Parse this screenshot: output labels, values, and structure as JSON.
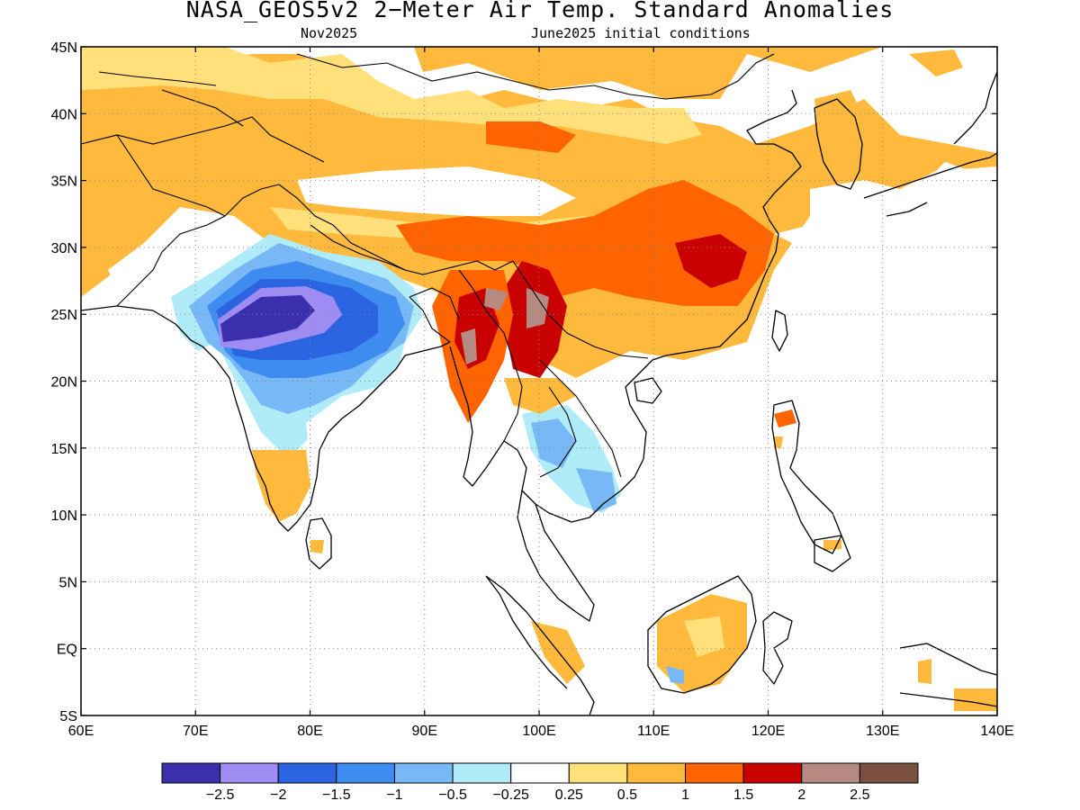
{
  "title": "NASA_GEOS5v2 2−Meter Air Temp. Standard Anomalies",
  "subtitle_left": "Nov2025",
  "subtitle_right": "June2025 initial conditions",
  "lat_labels": [
    "45N",
    "40N",
    "35N",
    "30N",
    "25N",
    "20N",
    "15N",
    "10N",
    "5N",
    "EQ",
    "5S"
  ],
  "lon_labels": [
    "60E",
    "70E",
    "80E",
    "90E",
    "100E",
    "110E",
    "120E",
    "130E",
    "140E"
  ],
  "colorbar": {
    "colors": [
      "#3b2fae",
      "#9f8cf2",
      "#2b64e0",
      "#3f8cf0",
      "#78b8f6",
      "#b0ecf8",
      "#ffffff",
      "#ffe07a",
      "#ffb93c",
      "#ff6400",
      "#c80000",
      "#b48a82",
      "#7a5040"
    ],
    "labels": [
      "−2.5",
      "−2",
      "−1.5",
      "−1",
      "−0.5",
      "−0.25",
      "0.25",
      "0.5",
      "1",
      "1.5",
      "2",
      "2.5"
    ]
  },
  "map_extent": {
    "lon": [
      60,
      140
    ],
    "lat": [
      -5,
      45
    ]
  }
}
